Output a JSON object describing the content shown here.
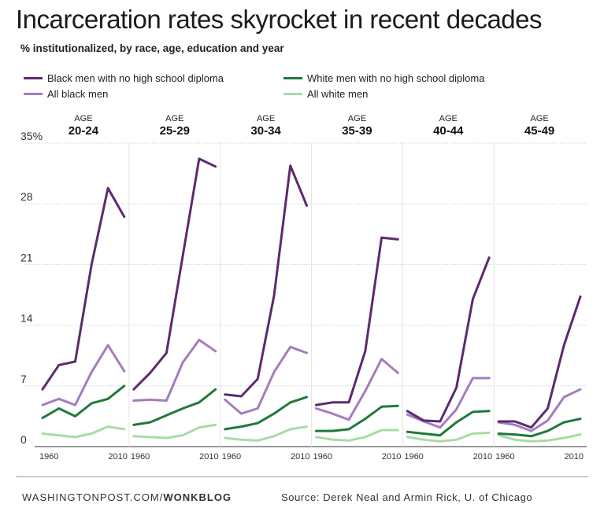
{
  "header": {
    "title": "Incarceration rates skyrocket in recent decades",
    "subtitle": "% institutionalized, by race, age, education and year"
  },
  "legend": [
    {
      "name": "Black men with no high school diploma",
      "color": "#5b2b6e"
    },
    {
      "name": "All black men",
      "color": "#a57cbf"
    },
    {
      "name": "White men with no high school diploma",
      "color": "#1e7a3a"
    },
    {
      "name": "All white men",
      "color": "#a8dca4"
    }
  ],
  "footer": {
    "credit_prefix": "WASHINGTONPOST.COM/",
    "credit_brand": "WONKBLOG",
    "source": "Source: Derek Neal and Armin Rick, U. of Chicago"
  },
  "chart_data": {
    "type": "line",
    "ylim": [
      0,
      35
    ],
    "yticks": [
      "0",
      "7",
      "14",
      "21",
      "28",
      "35%"
    ],
    "x": [
      1960,
      1970,
      1980,
      1990,
      2000,
      2010
    ],
    "xtick_labels": [
      "1960",
      "2010"
    ],
    "panel_label": "AGE",
    "series_colors": [
      "#5b2b6e",
      "#a57cbf",
      "#1e7a3a",
      "#a8dca4"
    ],
    "panels": [
      {
        "age": "20-24",
        "series": [
          {
            "name": "Black men with no high school diploma",
            "values": [
              6.6,
              9.4,
              9.8,
              21.0,
              29.8,
              26.5
            ]
          },
          {
            "name": "All black men",
            "values": [
              4.8,
              5.5,
              4.8,
              8.6,
              11.7,
              8.7
            ]
          },
          {
            "name": "White men with no high school diploma",
            "values": [
              3.3,
              4.4,
              3.5,
              5.0,
              5.5,
              7.0
            ]
          },
          {
            "name": "All white men",
            "values": [
              1.5,
              1.3,
              1.1,
              1.5,
              2.3,
              2.0
            ]
          }
        ]
      },
      {
        "age": "25-29",
        "series": [
          {
            "name": "Black men with no high school diploma",
            "values": [
              6.6,
              8.5,
              10.8,
              22.0,
              33.2,
              32.3
            ]
          },
          {
            "name": "All black men",
            "values": [
              5.3,
              5.4,
              5.3,
              9.7,
              12.3,
              11.0
            ]
          },
          {
            "name": "White men with no high school diploma",
            "values": [
              2.5,
              2.8,
              3.6,
              4.4,
              5.1,
              6.6
            ]
          },
          {
            "name": "All white men",
            "values": [
              1.2,
              1.1,
              1.0,
              1.3,
              2.2,
              2.5
            ]
          }
        ]
      },
      {
        "age": "30-34",
        "series": [
          {
            "name": "Black men with no high school diploma",
            "values": [
              6.0,
              5.8,
              7.8,
              17.4,
              32.4,
              27.8
            ]
          },
          {
            "name": "All black men",
            "values": [
              5.4,
              3.8,
              4.4,
              8.6,
              11.5,
              10.8
            ]
          },
          {
            "name": "White men with no high school diploma",
            "values": [
              2.0,
              2.3,
              2.7,
              3.8,
              5.1,
              5.7
            ]
          },
          {
            "name": "All white men",
            "values": [
              1.0,
              0.8,
              0.7,
              1.2,
              2.0,
              2.3
            ]
          }
        ]
      },
      {
        "age": "35-39",
        "series": [
          {
            "name": "Black men with no high school diploma",
            "values": [
              4.8,
              5.1,
              5.1,
              11.0,
              24.1,
              23.9
            ]
          },
          {
            "name": "All black men",
            "values": [
              4.4,
              3.8,
              3.1,
              6.4,
              10.1,
              8.5
            ]
          },
          {
            "name": "White men with no high school diploma",
            "values": [
              1.8,
              1.8,
              2.0,
              3.2,
              4.6,
              4.7
            ]
          },
          {
            "name": "All white men",
            "values": [
              1.1,
              0.8,
              0.7,
              1.1,
              1.9,
              1.9
            ]
          }
        ]
      },
      {
        "age": "40-44",
        "series": [
          {
            "name": "Black men with no high school diploma",
            "values": [
              4.1,
              3.0,
              2.9,
              6.8,
              17.0,
              21.8
            ]
          },
          {
            "name": "All black men",
            "values": [
              3.7,
              2.9,
              2.2,
              4.3,
              7.9,
              7.9
            ]
          },
          {
            "name": "White men with no high school diploma",
            "values": [
              1.7,
              1.5,
              1.3,
              2.8,
              4.0,
              4.1
            ]
          },
          {
            "name": "All white men",
            "values": [
              1.1,
              0.8,
              0.6,
              0.8,
              1.5,
              1.6
            ]
          }
        ]
      },
      {
        "age": "45-49",
        "series": [
          {
            "name": "Black men with no high school diploma",
            "values": [
              2.9,
              2.9,
              2.2,
              4.4,
              11.7,
              17.3
            ]
          },
          {
            "name": "All black men",
            "values": [
              2.8,
              2.5,
              1.8,
              3.0,
              5.7,
              6.6
            ]
          },
          {
            "name": "White men with no high school diploma",
            "values": [
              1.5,
              1.4,
              1.2,
              1.8,
              2.8,
              3.2
            ]
          },
          {
            "name": "All white men",
            "values": [
              1.3,
              0.8,
              0.6,
              0.7,
              1.0,
              1.4
            ]
          }
        ]
      }
    ]
  }
}
